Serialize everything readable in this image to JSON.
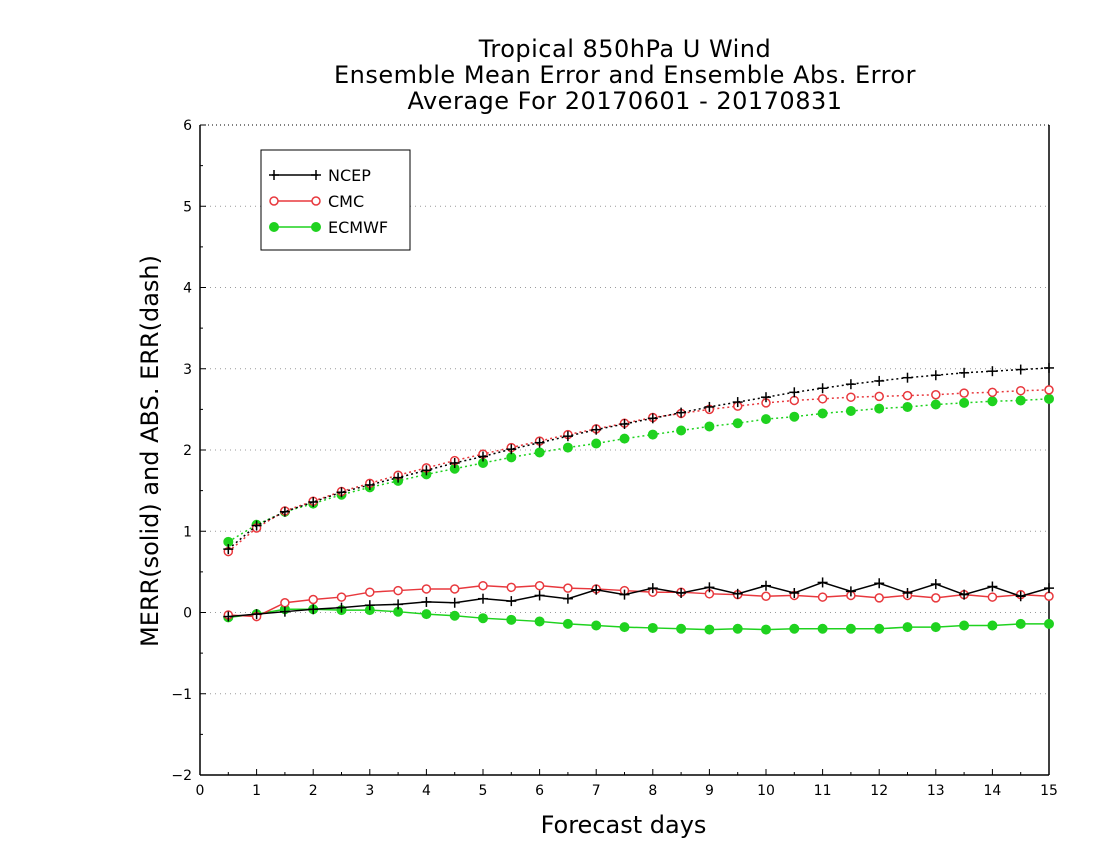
{
  "chart_data": {
    "type": "line",
    "title": [
      "Tropical 850hPa U Wind",
      "Ensemble Mean Error and Ensemble Abs. Error",
      "Average For 20170601 - 20170831"
    ],
    "xlabel": "Forecast days",
    "ylabel": "MERR(solid) and ABS. ERR(dash)",
    "xlim": [
      0,
      15
    ],
    "ylim": [
      -2,
      6
    ],
    "x_ticks": [
      0,
      1,
      2,
      3,
      4,
      5,
      6,
      7,
      8,
      9,
      10,
      11,
      12,
      13,
      14,
      15
    ],
    "y_ticks": [
      -2,
      -1,
      0,
      1,
      2,
      3,
      4,
      5,
      6
    ],
    "grid": "horizontal dotted",
    "legend_position": "top-left",
    "x": [
      0.5,
      1.0,
      1.5,
      2.0,
      2.5,
      3.0,
      3.5,
      4.0,
      4.5,
      5.0,
      5.5,
      6.0,
      6.5,
      7.0,
      7.5,
      8.0,
      8.5,
      9.0,
      9.5,
      10.0,
      10.5,
      11.0,
      11.5,
      12.0,
      12.5,
      13.0,
      13.5,
      14.0,
      14.5,
      15.0
    ],
    "series": [
      {
        "name": "NCEP",
        "color": "#000000",
        "marker": "plus",
        "merr": [
          -0.05,
          -0.02,
          0.01,
          0.04,
          0.06,
          0.09,
          0.1,
          0.13,
          0.12,
          0.17,
          0.14,
          0.21,
          0.17,
          0.28,
          0.22,
          0.3,
          0.24,
          0.31,
          0.23,
          0.33,
          0.24,
          0.37,
          0.26,
          0.36,
          0.24,
          0.35,
          0.22,
          0.32,
          0.2,
          0.3
        ],
        "abs_err": [
          0.78,
          1.07,
          1.24,
          1.36,
          1.48,
          1.57,
          1.66,
          1.75,
          1.84,
          1.92,
          2.01,
          2.09,
          2.17,
          2.25,
          2.32,
          2.39,
          2.46,
          2.53,
          2.59,
          2.65,
          2.71,
          2.76,
          2.81,
          2.85,
          2.89,
          2.92,
          2.95,
          2.97,
          2.99,
          3.01
        ]
      },
      {
        "name": "CMC",
        "color": "#e8383d",
        "marker": "open-circle",
        "merr": [
          -0.03,
          -0.05,
          0.12,
          0.16,
          0.19,
          0.25,
          0.27,
          0.29,
          0.29,
          0.33,
          0.31,
          0.33,
          0.3,
          0.29,
          0.27,
          0.25,
          0.25,
          0.23,
          0.22,
          0.2,
          0.21,
          0.19,
          0.21,
          0.18,
          0.21,
          0.18,
          0.22,
          0.19,
          0.22,
          0.2
        ],
        "abs_err": [
          0.75,
          1.04,
          1.25,
          1.37,
          1.49,
          1.59,
          1.69,
          1.78,
          1.87,
          1.95,
          2.03,
          2.11,
          2.19,
          2.26,
          2.33,
          2.4,
          2.45,
          2.5,
          2.54,
          2.58,
          2.61,
          2.63,
          2.65,
          2.66,
          2.67,
          2.68,
          2.7,
          2.71,
          2.73,
          2.74
        ]
      },
      {
        "name": "ECMWF",
        "color": "#1fd21f",
        "marker": "filled-circle",
        "merr": [
          -0.06,
          -0.02,
          0.04,
          0.04,
          0.03,
          0.03,
          0.01,
          -0.02,
          -0.04,
          -0.07,
          -0.09,
          -0.11,
          -0.14,
          -0.16,
          -0.18,
          -0.19,
          -0.2,
          -0.21,
          -0.2,
          -0.21,
          -0.2,
          -0.2,
          -0.2,
          -0.2,
          -0.18,
          -0.18,
          -0.16,
          -0.16,
          -0.14,
          -0.14
        ],
        "abs_err": [
          0.87,
          1.08,
          1.24,
          1.34,
          1.45,
          1.54,
          1.62,
          1.7,
          1.77,
          1.84,
          1.91,
          1.97,
          2.03,
          2.08,
          2.14,
          2.19,
          2.24,
          2.29,
          2.33,
          2.38,
          2.41,
          2.45,
          2.48,
          2.51,
          2.53,
          2.56,
          2.58,
          2.6,
          2.61,
          2.63
        ]
      }
    ]
  }
}
